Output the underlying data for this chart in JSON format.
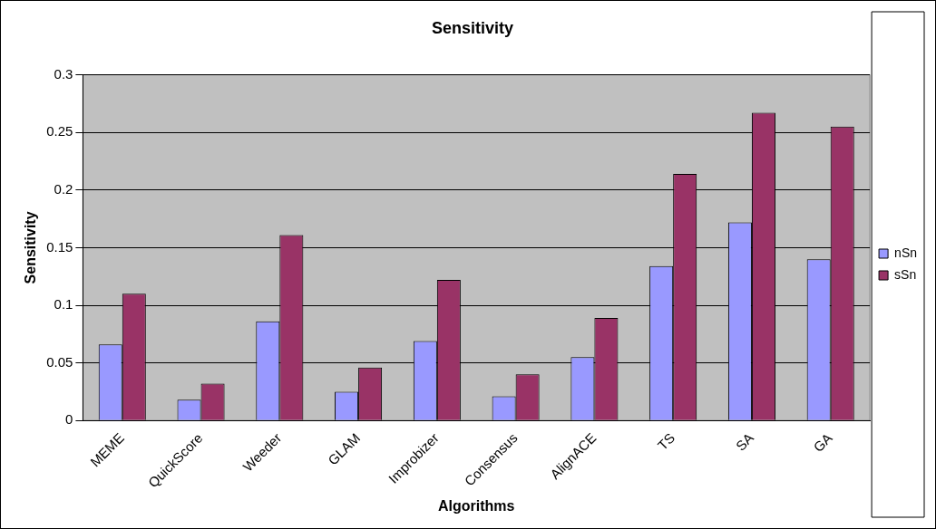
{
  "chart_data": {
    "type": "bar",
    "title": "Sensitivity",
    "xlabel": "Algorithms",
    "ylabel": "Sensitivity",
    "categories": [
      "MEME",
      "QuickScore",
      "Weeder",
      "GLAM",
      "Improbizer",
      "Consensus",
      "AlignACE",
      "TS",
      "SA",
      "GA"
    ],
    "series": [
      {
        "name": "nSn",
        "color": "#9999ff",
        "values": [
          0.066,
          0.018,
          0.086,
          0.025,
          0.069,
          0.021,
          0.055,
          0.134,
          0.172,
          0.14
        ]
      },
      {
        "name": "sSn",
        "color": "#993366",
        "values": [
          0.11,
          0.032,
          0.161,
          0.046,
          0.122,
          0.04,
          0.089,
          0.214,
          0.267,
          0.255
        ]
      }
    ],
    "ylim": [
      0,
      0.3
    ],
    "yticks": [
      0,
      0.05,
      0.1,
      0.15,
      0.2,
      0.25,
      0.3
    ],
    "grid": "y",
    "legend": "right"
  }
}
